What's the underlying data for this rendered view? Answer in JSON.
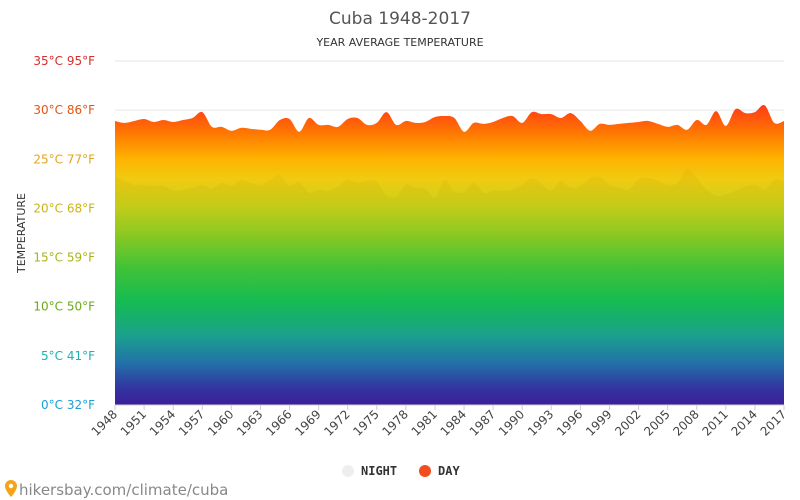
{
  "chart_data": {
    "type": "area",
    "title": "Cuba 1948-2017",
    "subtitle": "YEAR AVERAGE TEMPERATURE",
    "ylabel": "TEMPERATURE",
    "ylim": [
      0,
      35
    ],
    "y_ticks": [
      {
        "value": 0,
        "label": "0°C 32°F",
        "color": "#1a9fd6"
      },
      {
        "value": 5,
        "label": "5°C 41°F",
        "color": "#19b3b3"
      },
      {
        "value": 10,
        "label": "10°C 50°F",
        "color": "#6aaa17"
      },
      {
        "value": 15,
        "label": "15°C 59°F",
        "color": "#a8b416"
      },
      {
        "value": 20,
        "label": "20°C 68°F",
        "color": "#c9b517"
      },
      {
        "value": 25,
        "label": "25°C 77°F",
        "color": "#e3a51a"
      },
      {
        "value": 30,
        "label": "30°C 86°F",
        "color": "#e05514"
      },
      {
        "value": 35,
        "label": "35°C 95°F",
        "color": "#d62d2d"
      }
    ],
    "x_ticks": [
      "1948",
      "1951",
      "1954",
      "1957",
      "1960",
      "1963",
      "1966",
      "1969",
      "1972",
      "1975",
      "1978",
      "1981",
      "1984",
      "1987",
      "1990",
      "1993",
      "1996",
      "1999",
      "2002",
      "2005",
      "2008",
      "2011",
      "2014",
      "2017"
    ],
    "x": [
      1948,
      1949,
      1950,
      1951,
      1952,
      1953,
      1954,
      1955,
      1956,
      1957,
      1958,
      1959,
      1960,
      1961,
      1962,
      1963,
      1964,
      1965,
      1966,
      1967,
      1968,
      1969,
      1970,
      1971,
      1972,
      1973,
      1974,
      1975,
      1976,
      1977,
      1978,
      1979,
      1980,
      1981,
      1982,
      1983,
      1984,
      1985,
      1986,
      1987,
      1988,
      1989,
      1990,
      1991,
      1992,
      1993,
      1994,
      1995,
      1996,
      1997,
      1998,
      1999,
      2000,
      2001,
      2002,
      2003,
      2004,
      2005,
      2006,
      2007,
      2008,
      2009,
      2010,
      2011,
      2012,
      2013,
      2014,
      2015,
      2016,
      2017
    ],
    "series": [
      {
        "name": "NIGHT",
        "color": "#eeeeee",
        "values": [
          23.3,
          22.8,
          22.4,
          22.4,
          22.3,
          22.3,
          21.8,
          21.9,
          22.1,
          22.4,
          22.0,
          22.6,
          22.3,
          22.9,
          22.6,
          22.4,
          22.9,
          23.4,
          22.3,
          22.7,
          21.6,
          21.9,
          21.8,
          22.2,
          22.9,
          22.6,
          22.8,
          22.7,
          21.3,
          21.2,
          22.4,
          22.1,
          22.0,
          21.1,
          22.9,
          21.7,
          21.7,
          22.6,
          21.6,
          21.8,
          21.8,
          21.9,
          22.4,
          23.1,
          22.5,
          21.8,
          22.8,
          22.1,
          22.3,
          23.1,
          23.2,
          22.4,
          22.1,
          21.9,
          23.0,
          23.1,
          22.8,
          22.4,
          22.6,
          24.0,
          23.1,
          21.9,
          21.3,
          21.4,
          21.8,
          22.2,
          22.4,
          21.9,
          22.9,
          22.8
        ]
      },
      {
        "name": "DAY",
        "color": "#f04e1e",
        "values": [
          28.9,
          28.7,
          28.9,
          29.1,
          28.8,
          29.0,
          28.8,
          29.0,
          29.2,
          29.8,
          28.3,
          28.3,
          27.9,
          28.2,
          28.1,
          28.0,
          28.0,
          29.0,
          29.1,
          27.8,
          29.2,
          28.5,
          28.5,
          28.3,
          29.1,
          29.2,
          28.5,
          28.7,
          29.8,
          28.5,
          28.9,
          28.7,
          28.8,
          29.3,
          29.4,
          29.2,
          27.8,
          28.7,
          28.6,
          28.8,
          29.2,
          29.4,
          28.7,
          29.8,
          29.6,
          29.6,
          29.2,
          29.7,
          28.9,
          27.9,
          28.6,
          28.5,
          28.6,
          28.7,
          28.8,
          28.9,
          28.6,
          28.3,
          28.5,
          28.0,
          29.0,
          28.5,
          29.9,
          28.4,
          30.1,
          29.7,
          29.8,
          30.5,
          28.7,
          28.9
        ]
      }
    ],
    "legend": {
      "placement": "bottom-center"
    },
    "grid": true
  },
  "footer": {
    "text": "hikersbay.com/climate/cuba"
  }
}
